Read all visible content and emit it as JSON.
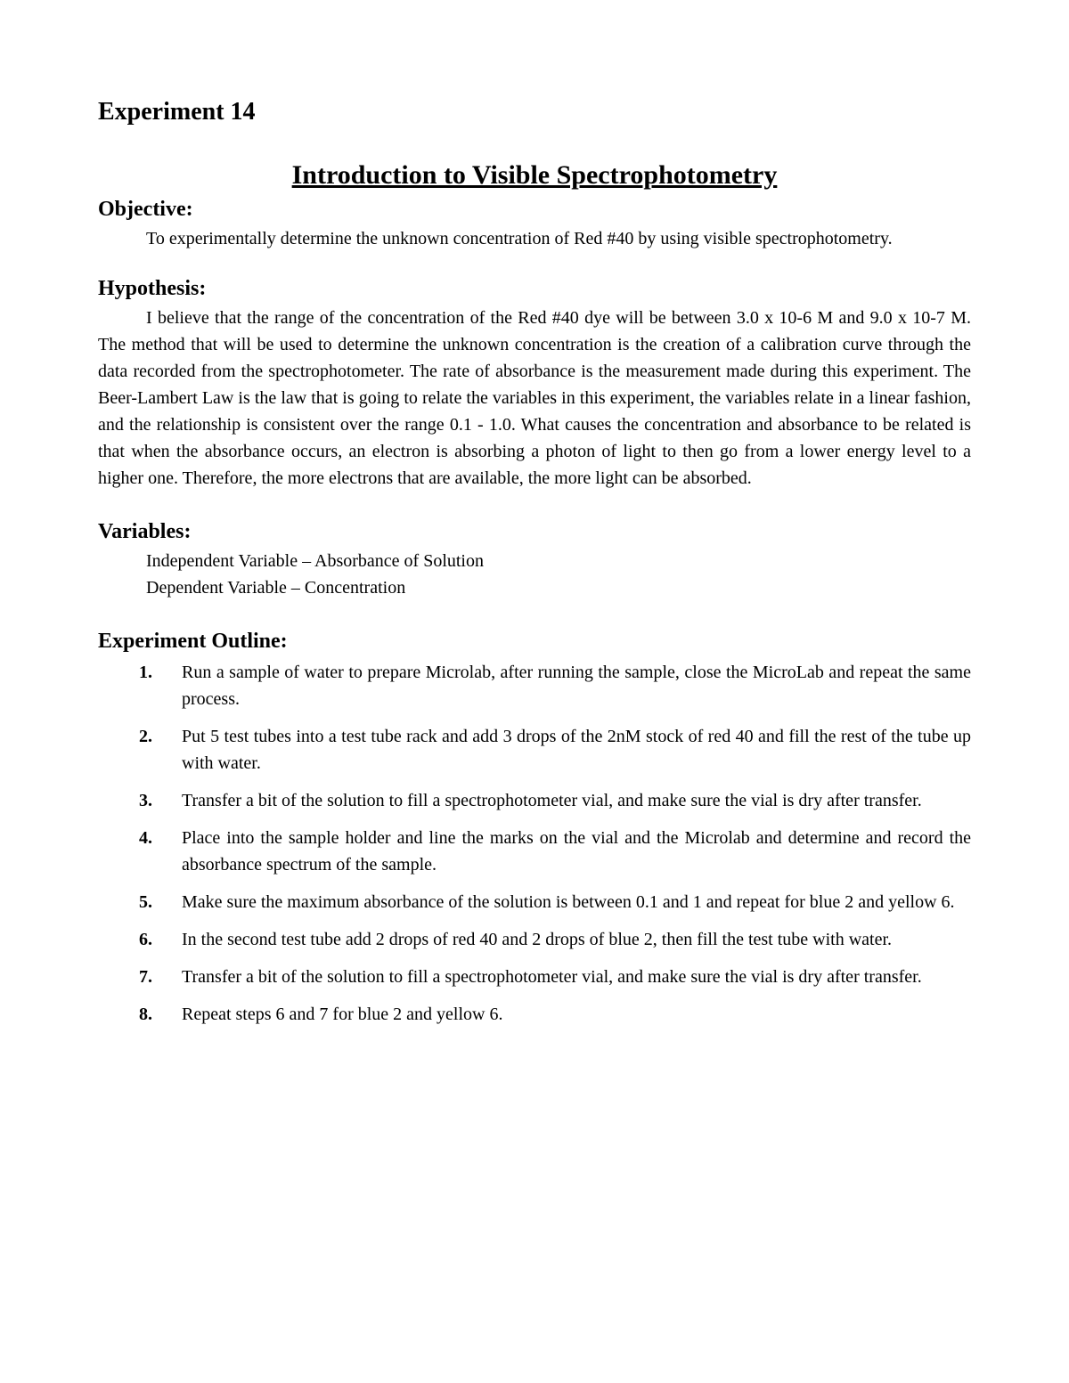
{
  "experiment_label": "Experiment 14",
  "title": "Introduction to Visible Spectrophotometry",
  "objective": {
    "heading": "Objective:",
    "text": "To experimentally determine the unknown concentration of Red #40 by using visible spectrophotometry."
  },
  "hypothesis": {
    "heading": "Hypothesis:",
    "text": "I believe that the range of the concentration of the Red #40 dye will be between 3.0 x 10-6 M and 9.0 x 10-7 M. The method that will be used to determine the unknown concentration is the creation of a calibration curve through the data recorded from the spectrophotometer. The rate of absorbance is the measurement made during this experiment. The Beer-Lambert Law is the law that is going to relate the variables in this experiment, the variables relate in a linear fashion, and the relationship is consistent over the range 0.1 - 1.0. What causes the concentration and absorbance to be related is that when the absorbance occurs, an electron is absorbing a photon of light to then go from a lower energy level to a higher one. Therefore, the more electrons that are available, the more light can be absorbed."
  },
  "variables": {
    "heading": "Variables:",
    "independent": "Independent Variable – Absorbance of Solution",
    "dependent": "Dependent Variable – Concentration"
  },
  "outline": {
    "heading": "Experiment Outline:",
    "steps": [
      "Run a sample of water to prepare Microlab, after running the sample, close the MicroLab and repeat the same process.",
      "Put 5 test tubes into a test tube rack and add 3 drops of the 2nM stock of red 40 and fill the rest of the tube up with water.",
      "Transfer a bit of the solution to fill a spectrophotometer vial, and make sure the vial is dry after transfer.",
      "Place into the sample holder and line the marks on the vial and the Microlab and determine and record the absorbance spectrum of the sample.",
      "Make sure the maximum absorbance of the solution is between 0.1 and 1 and repeat for blue 2 and yellow 6.",
      "In the second test tube add 2 drops of red 40 and 2 drops of blue 2, then fill the test tube with water.",
      "Transfer a bit of the solution to fill a spectrophotometer vial, and make sure the vial is dry after transfer.",
      "Repeat steps 6 and 7 for blue 2 and yellow 6."
    ]
  },
  "style": {
    "page_bg": "#ffffff",
    "text_color": "#000000",
    "font_family": "Times New Roman",
    "h_experiment_fontsize": 28,
    "h_title_fontsize": 30,
    "h_section_fontsize": 24,
    "body_fontsize": 20
  }
}
